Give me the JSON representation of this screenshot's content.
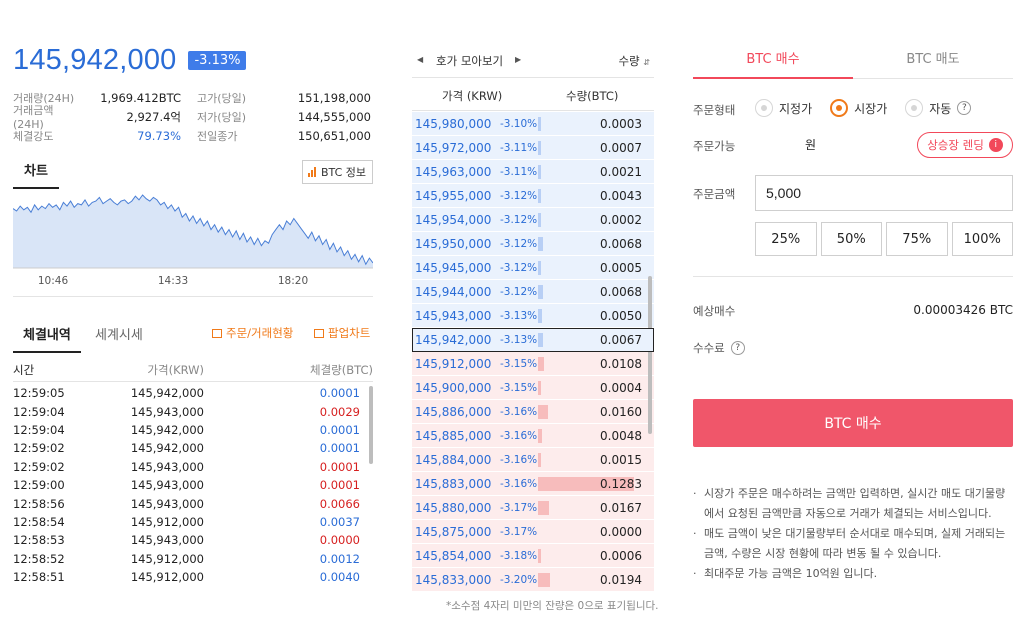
{
  "ticker": {
    "price": "145,942,000",
    "change": "-3.13%",
    "stats": [
      {
        "l1": "거래량(24H)",
        "v1": "1,969.412BTC",
        "l2": "고가(당일)",
        "v2": "151,198,000"
      },
      {
        "l1": "거래금액(24H)",
        "v1": "2,927.4억",
        "l2": "저가(당일)",
        "v2": "144,555,000"
      },
      {
        "l1": "체결강도",
        "v1": "79.73%",
        "l2": "전일종가",
        "v2": "150,651,000"
      }
    ]
  },
  "chart": {
    "tab_label": "차트",
    "info_button": "BTC 정보",
    "x_ticks": [
      "10:46",
      "14:33",
      "18:20"
    ]
  },
  "chart_data": {
    "type": "line",
    "x_ticks": [
      "10:46",
      "14:33",
      "18:20"
    ],
    "values": [
      150.3,
      150.1,
      150.5,
      150.2,
      150.4,
      150.0,
      150.6,
      150.2,
      150.5,
      150.3,
      150.7,
      150.4,
      150.6,
      150.2,
      150.8,
      150.5,
      150.9,
      150.4,
      150.7,
      150.6,
      151.0,
      150.5,
      150.8,
      150.9,
      151.2,
      150.7,
      150.9,
      151.1,
      150.8,
      150.6,
      150.9,
      151.0,
      150.7,
      150.9,
      151.3,
      151.0,
      151.4,
      151.1,
      150.9,
      151.2,
      151.0,
      150.6,
      150.8,
      150.3,
      150.6,
      150.1,
      150.4,
      149.6,
      149.9,
      149.3,
      149.7,
      149.1,
      149.5,
      148.9,
      149.3,
      148.6,
      149.0,
      148.4,
      148.8,
      148.2,
      148.6,
      148.0,
      148.5,
      147.8,
      148.3,
      147.6,
      148.0,
      147.4,
      147.9,
      147.3,
      147.7,
      147.5,
      148.2,
      148.6,
      149.0,
      148.6,
      149.3,
      149.0,
      149.5,
      149.1,
      148.7,
      148.3,
      147.9,
      148.4,
      147.7,
      148.1,
      147.4,
      147.8,
      147.0,
      147.5,
      146.8,
      147.2,
      146.5,
      146.9,
      146.2,
      146.6,
      146.0,
      146.5,
      145.8,
      146.3,
      145.9
    ],
    "ylim": [
      145.5,
      151.8
    ],
    "grid": false,
    "legend": "none"
  },
  "trades": {
    "tab_active": "체결내역",
    "tab_other": "세계시세",
    "link_orders": "주문/거래현황",
    "link_popup": "팝업차트",
    "headers": {
      "time": "시간",
      "price": "가격(KRW)",
      "volume": "체결량(BTC)"
    },
    "rows": [
      {
        "time": "12:59:05",
        "price": "145,942,000",
        "vol": "0.0001",
        "side": "blue"
      },
      {
        "time": "12:59:04",
        "price": "145,943,000",
        "vol": "0.0029",
        "side": "red"
      },
      {
        "time": "12:59:04",
        "price": "145,942,000",
        "vol": "0.0001",
        "side": "blue"
      },
      {
        "time": "12:59:02",
        "price": "145,942,000",
        "vol": "0.0001",
        "side": "blue"
      },
      {
        "time": "12:59:02",
        "price": "145,943,000",
        "vol": "0.0001",
        "side": "red"
      },
      {
        "time": "12:59:00",
        "price": "145,943,000",
        "vol": "0.0001",
        "side": "red"
      },
      {
        "time": "12:58:56",
        "price": "145,943,000",
        "vol": "0.0066",
        "side": "red"
      },
      {
        "time": "12:58:54",
        "price": "145,912,000",
        "vol": "0.0037",
        "side": "blue"
      },
      {
        "time": "12:58:53",
        "price": "145,943,000",
        "vol": "0.0000",
        "side": "red"
      },
      {
        "time": "12:58:52",
        "price": "145,912,000",
        "vol": "0.0012",
        "side": "blue"
      },
      {
        "time": "12:58:51",
        "price": "145,912,000",
        "vol": "0.0040",
        "side": "blue"
      }
    ]
  },
  "orderbook": {
    "group_label": "호가 모아보기",
    "qty_sort": "수량",
    "headers": {
      "price": "가격 (KRW)",
      "qty": "수량(BTC)"
    },
    "footnote": "*소수점 4자리 미만의 잔량은 0으로 표기됩니다.",
    "rows": [
      {
        "price": "145,980,000",
        "pct": "-3.10%",
        "qty": "0.0003",
        "side": "ask",
        "bar": 0.03
      },
      {
        "price": "145,972,000",
        "pct": "-3.11%",
        "qty": "0.0007",
        "side": "ask",
        "bar": 0.03
      },
      {
        "price": "145,963,000",
        "pct": "-3.11%",
        "qty": "0.0021",
        "side": "ask",
        "bar": 0.03
      },
      {
        "price": "145,955,000",
        "pct": "-3.12%",
        "qty": "0.0043",
        "side": "ask",
        "bar": 0.03
      },
      {
        "price": "145,954,000",
        "pct": "-3.12%",
        "qty": "0.0002",
        "side": "ask",
        "bar": 0.03
      },
      {
        "price": "145,950,000",
        "pct": "-3.12%",
        "qty": "0.0068",
        "side": "ask",
        "bar": 0.05
      },
      {
        "price": "145,945,000",
        "pct": "-3.12%",
        "qty": "0.0005",
        "side": "ask",
        "bar": 0.03
      },
      {
        "price": "145,944,000",
        "pct": "-3.12%",
        "qty": "0.0068",
        "side": "ask",
        "bar": 0.05
      },
      {
        "price": "145,943,000",
        "pct": "-3.13%",
        "qty": "0.0050",
        "side": "ask",
        "bar": 0.04
      },
      {
        "price": "145,942,000",
        "pct": "-3.13%",
        "qty": "0.0067",
        "side": "ask",
        "bar": 0.05,
        "current": true
      },
      {
        "price": "145,912,000",
        "pct": "-3.15%",
        "qty": "0.0108",
        "side": "bid",
        "bar": 0.06
      },
      {
        "price": "145,900,000",
        "pct": "-3.15%",
        "qty": "0.0004",
        "side": "bid",
        "bar": 0.03
      },
      {
        "price": "145,886,000",
        "pct": "-3.16%",
        "qty": "0.0160",
        "side": "bid",
        "bar": 0.1
      },
      {
        "price": "145,885,000",
        "pct": "-3.16%",
        "qty": "0.0048",
        "side": "bid",
        "bar": 0.04
      },
      {
        "price": "145,884,000",
        "pct": "-3.16%",
        "qty": "0.0015",
        "side": "bid",
        "bar": 0.03
      },
      {
        "price": "145,883,000",
        "pct": "-3.16%",
        "qty": "0.1283",
        "side": "bid",
        "bar": 1.0
      },
      {
        "price": "145,880,000",
        "pct": "-3.17%",
        "qty": "0.0167",
        "side": "bid",
        "bar": 0.11
      },
      {
        "price": "145,875,000",
        "pct": "-3.17%",
        "qty": "0.0000",
        "side": "bid",
        "bar": 0.0
      },
      {
        "price": "145,854,000",
        "pct": "-3.18%",
        "qty": "0.0006",
        "side": "bid",
        "bar": 0.03
      },
      {
        "price": "145,833,000",
        "pct": "-3.20%",
        "qty": "0.0194",
        "side": "bid",
        "bar": 0.13
      }
    ]
  },
  "order_form": {
    "tab_buy": "BTC 매수",
    "tab_sell": "BTC 매도",
    "order_type_label": "주문형태",
    "order_types": [
      "지정가",
      "시장가",
      "자동"
    ],
    "selected_type": "시장가",
    "available_label": "주문가능",
    "available_value": "원",
    "listing_button": "상승장 렌딩",
    "amount_label": "주문금액",
    "amount_value": "5,000",
    "percent_buttons": [
      "25%",
      "50%",
      "75%",
      "100%"
    ],
    "estimate_label": "예상매수",
    "estimate_value": "0.00003426 BTC",
    "fee_label": "수수료",
    "submit_label": "BTC 매수",
    "notes": [
      "시장가 주문은 매수하려는 금액만 입력하면, 실시간 매도 대기물량에서 요청된 금액만큼 자동으로 거래가 체결되는 서비스입니다.",
      "매도 금액이 낮은 대기물량부터 순서대로 매수되며, 실제 거래되는 금액, 수량은 시장 현황에 따라 변동 될 수 있습니다.",
      "최대주문 가능 금액은 10억원 입니다."
    ]
  },
  "colors": {
    "up": "#d61f1f",
    "down": "#2a6cd6",
    "buy_accent": "#f2485a",
    "orange": "#f07a1a",
    "chart_line": "#4a7fd6",
    "chart_fill": "#d9e5f7"
  }
}
